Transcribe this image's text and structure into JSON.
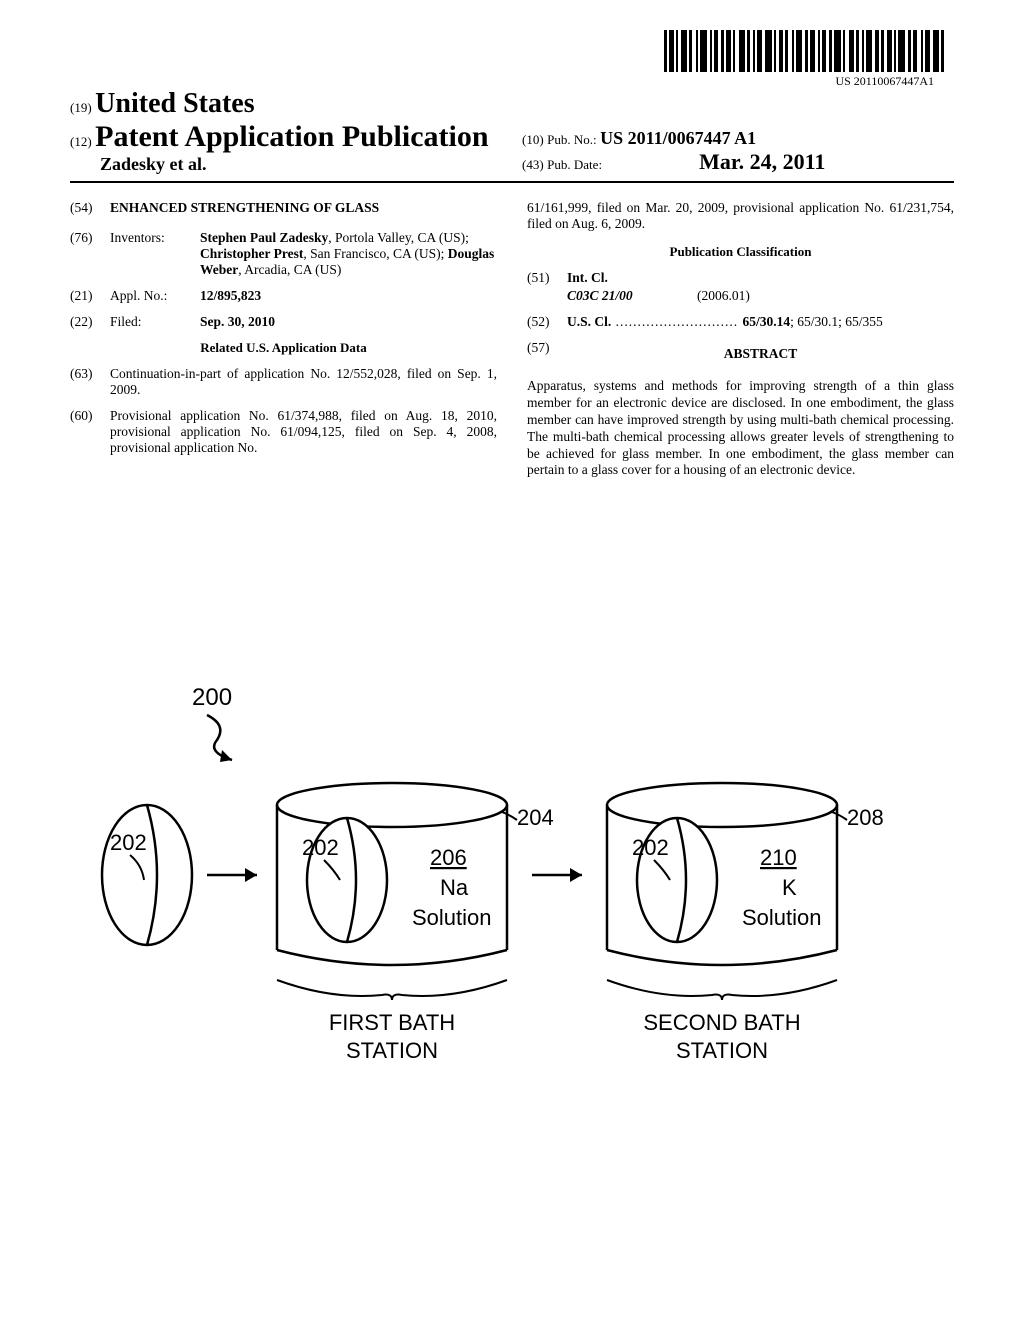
{
  "barcode": {
    "text_under": "US 20110067447A1"
  },
  "header": {
    "code19": "(19)",
    "country": "United States",
    "code12": "(12)",
    "pub_type": "Patent Application Publication",
    "authors_line": "Zadesky et al.",
    "code10": "(10)",
    "pubno_label": "Pub. No.:",
    "pubno_value": "US 2011/0067447 A1",
    "code43": "(43)",
    "pubdate_label": "Pub. Date:",
    "pubdate_value": "Mar. 24, 2011"
  },
  "left_col": {
    "f54": {
      "num": "(54)",
      "title": "ENHANCED STRENGTHENING OF GLASS"
    },
    "f76": {
      "num": "(76)",
      "label": "Inventors:",
      "inv1_name": "Stephen Paul Zadesky",
      "inv1_loc": ", Portola Valley, CA (US); ",
      "inv2_name": "Christopher Prest",
      "inv2_loc": ", San Francisco, CA (US); ",
      "inv3_name": "Douglas Weber",
      "inv3_loc": ", Arcadia, CA (US)"
    },
    "f21": {
      "num": "(21)",
      "label": "Appl. No.:",
      "value": "12/895,823"
    },
    "f22": {
      "num": "(22)",
      "label": "Filed:",
      "value": "Sep. 30, 2010"
    },
    "related_title": "Related U.S. Application Data",
    "f63": {
      "num": "(63)",
      "text": "Continuation-in-part of application No. 12/552,028, filed on Sep. 1, 2009."
    },
    "f60": {
      "num": "(60)",
      "text": "Provisional application No. 61/374,988, filed on Aug. 18, 2010, provisional application No. 61/094,125, filed on Sep. 4, 2008, provisional application No."
    }
  },
  "right_col": {
    "continuation": "61/161,999, filed on Mar. 20, 2009, provisional application No. 61/231,754, filed on Aug. 6, 2009.",
    "pub_class_title": "Publication Classification",
    "f51": {
      "num": "(51)",
      "label": "Int. Cl.",
      "code": "C03C 21/00",
      "year": "(2006.01)"
    },
    "f52": {
      "num": "(52)",
      "label": "U.S. Cl.",
      "dots": " ............................ ",
      "value": "65/30.14; 65/30.1; 65/355"
    },
    "f57": {
      "num": "(57)",
      "title": "ABSTRACT"
    },
    "abstract": "Apparatus, systems and methods for improving strength of a thin glass member for an electronic device are disclosed. In one embodiment, the glass member can have improved strength by using multi-bath chemical processing. The multi-bath chemical processing allows greater levels of strengthening to be achieved for glass member. In one embodiment, the glass member can pertain to a glass cover for a housing of an electronic device."
  },
  "figure": {
    "ref200": "200",
    "ref202a": "202",
    "ref202b": "202",
    "ref202c": "202",
    "ref204": "204",
    "ref206": "206",
    "ref208": "208",
    "ref210": "210",
    "na_line1": "Na",
    "na_line2": "Solution",
    "k_line1": "K",
    "k_line2": "Solution",
    "caption1_l1": "FIRST BATH",
    "caption1_l2": "STATION",
    "caption2_l1": "SECOND BATH",
    "caption2_l2": "STATION",
    "colors": {
      "stroke": "#000000",
      "fill": "#ffffff"
    },
    "stroke_width": 2.5
  }
}
